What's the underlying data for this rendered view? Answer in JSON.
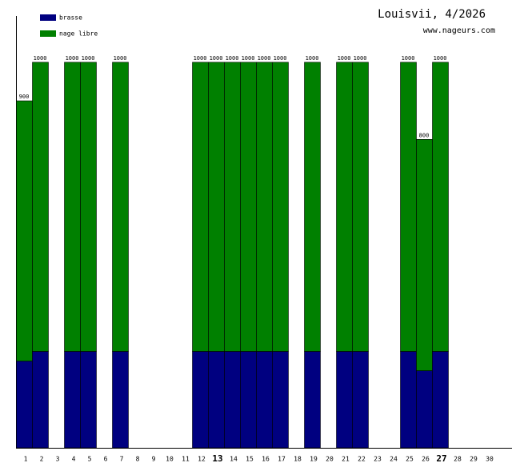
{
  "chart_data": {
    "type": "stacked-bar",
    "title": "Louisvii, 4/2026",
    "subtitle": "www.nageurs.com",
    "categories": [
      "1",
      "2",
      "3",
      "4",
      "5",
      "6",
      "7",
      "8",
      "9",
      "10",
      "11",
      "12",
      "13",
      "14",
      "15",
      "16",
      "17",
      "18",
      "19",
      "20",
      "21",
      "22",
      "23",
      "24",
      "25",
      "26",
      "27",
      "28",
      "29",
      "30"
    ],
    "bold_categories": [
      "13",
      "27"
    ],
    "series": [
      {
        "name": "brasse",
        "color": "#000080",
        "values": [
          225,
          250,
          null,
          250,
          250,
          null,
          250,
          null,
          null,
          null,
          null,
          250,
          250,
          250,
          250,
          250,
          250,
          null,
          250,
          null,
          250,
          250,
          null,
          null,
          250,
          200,
          250,
          null,
          null,
          null
        ]
      },
      {
        "name": "nage libre",
        "color": "#008000",
        "values": [
          675,
          750,
          null,
          750,
          750,
          null,
          750,
          null,
          null,
          null,
          null,
          750,
          750,
          750,
          750,
          750,
          750,
          null,
          750,
          null,
          750,
          750,
          null,
          null,
          750,
          600,
          750,
          null,
          null,
          null
        ]
      }
    ],
    "totals": [
      900,
      1000,
      null,
      1000,
      1000,
      null,
      1000,
      null,
      null,
      null,
      null,
      1000,
      1000,
      1000,
      1000,
      1000,
      1000,
      null,
      1000,
      null,
      1000,
      1000,
      null,
      null,
      1000,
      800,
      1000,
      null,
      null,
      null
    ],
    "ylim": [
      0,
      1120
    ]
  }
}
